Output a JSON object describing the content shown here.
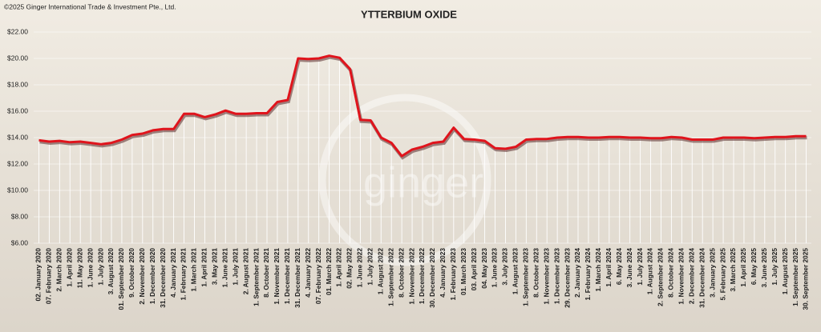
{
  "copyright": "©2025 Ginger International Trade & Investment Pte., Ltd.",
  "watermark": "ginger",
  "chart_data": {
    "type": "line",
    "title": "YTTERBIUM OXIDE",
    "categories": [
      "02. January 2020",
      "07. February 2020",
      "2. March 2020",
      "1. April 2020",
      "11. May 2020",
      "1. June 2020",
      "1. July 2020",
      "3. August 2020",
      "01. September 2020",
      "9. October 2020",
      "2. November 2020",
      "1. December 2020",
      "31. December 2020",
      "4. January 2021",
      "1. February 2021",
      "1. March 2021",
      "1. April 2021",
      "3. May 2021",
      "1. June 2021",
      "1. July 2021",
      "2. August 2021",
      "1. September 2021",
      "8. October 2021",
      "1. November 2021",
      "1. December 2021",
      "31. December 2021",
      "4. January 2022",
      "07. February 2022",
      "01. March 2022",
      "1. April 2022",
      "02. May 2022",
      "1. June 2022",
      "1. July 2022",
      "1. August 2022",
      "1. September 2022",
      "8. October 2022",
      "1. November 2022",
      "1. December 2022",
      "30. December 2022",
      "4. January 2023",
      "1. February 2023",
      "01. March 2023",
      "03. April 2023",
      "04. May 2023",
      "1. June 2023",
      "3. July 2023",
      "1. August 2023",
      "1. September 2023",
      "8. October 2023",
      "1. November 2023",
      "1. December 2023",
      "29. December 2023",
      "2. January 2024",
      "1. February 2024",
      "1. March 2024",
      "1. April 2024",
      "6. May 2024",
      "3. June 2024",
      "1. July 2024",
      "1. August 2024",
      "2. September 2024",
      "8. October 2024",
      "1. November 2024",
      "2. December 2024",
      "31. December 2024",
      "3. January 2025",
      "5. February 2025",
      "3. March 2025",
      "1. April 2025",
      "6. May 2025",
      "3. June 2025",
      "1. July 2025",
      "1. August 2025",
      "1. September 2025",
      "30. September 2025"
    ],
    "values": [
      13.8,
      13.7,
      13.75,
      13.65,
      13.7,
      13.6,
      13.5,
      13.6,
      13.85,
      14.2,
      14.3,
      14.55,
      14.65,
      14.65,
      15.8,
      15.8,
      15.55,
      15.75,
      16.05,
      15.8,
      15.8,
      15.85,
      15.85,
      16.7,
      16.85,
      20.0,
      19.95,
      20.0,
      20.2,
      20.05,
      19.2,
      15.35,
      15.3,
      14.0,
      13.6,
      12.6,
      13.1,
      13.3,
      13.6,
      13.7,
      14.75,
      13.9,
      13.85,
      13.75,
      13.2,
      13.15,
      13.3,
      13.85,
      13.9,
      13.9,
      14.0,
      14.05,
      14.05,
      14.0,
      14.0,
      14.05,
      14.05,
      14.0,
      14.0,
      13.95,
      13.95,
      14.05,
      14.0,
      13.85,
      13.85,
      13.85,
      14.0,
      14.0,
      14.0,
      13.95,
      14.0,
      14.05,
      14.05,
      14.1,
      14.1
    ],
    "color": "#e0141c",
    "ylim": [
      6,
      22
    ],
    "yticks": [
      {
        "value": 6,
        "label": "$6.00"
      },
      {
        "value": 8,
        "label": "$8.00"
      },
      {
        "value": 10,
        "label": "$10.00"
      },
      {
        "value": 12,
        "label": "$12.00"
      },
      {
        "value": 14,
        "label": "$14.00"
      },
      {
        "value": 16,
        "label": "$16.00"
      },
      {
        "value": 18,
        "label": "$18.00"
      },
      {
        "value": 20,
        "label": "$20.00"
      },
      {
        "value": 22,
        "label": "$22.00"
      }
    ],
    "grid": true
  }
}
